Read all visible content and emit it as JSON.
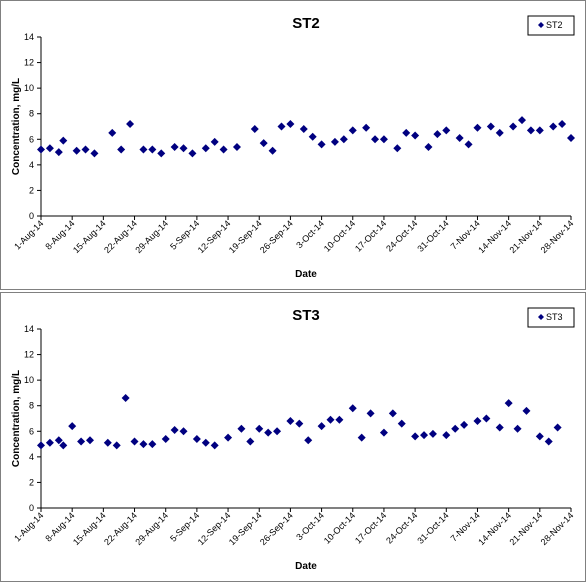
{
  "chart_data": [
    {
      "type": "scatter",
      "title": "ST2",
      "xlabel": "Date",
      "ylabel": "Concentration, mg/L",
      "ylim": [
        0,
        14
      ],
      "yticks": [
        "0",
        "2",
        "4",
        "6",
        "8",
        "10",
        "12",
        "14"
      ],
      "xlim": [
        "2014-08-01",
        "2014-11-28"
      ],
      "xticks": [
        "1-Aug-14",
        "8-Aug-14",
        "15-Aug-14",
        "22-Aug-14",
        "29-Aug-14",
        "5-Sep-14",
        "12-Sep-14",
        "19-Sep-14",
        "26-Sep-14",
        "3-Oct-14",
        "10-Oct-14",
        "17-Oct-14",
        "24-Oct-14",
        "31-Oct-14",
        "7-Nov-14",
        "14-Nov-14",
        "21-Nov-14",
        "28-Nov-14"
      ],
      "grid": false,
      "legend": "top-right",
      "marker_color": "#000080",
      "series": [
        {
          "name": "ST2",
          "points": [
            [
              "2014-08-01",
              5.2
            ],
            [
              "2014-08-03",
              5.3
            ],
            [
              "2014-08-05",
              5.0
            ],
            [
              "2014-08-06",
              5.9
            ],
            [
              "2014-08-09",
              5.1
            ],
            [
              "2014-08-11",
              5.2
            ],
            [
              "2014-08-13",
              4.9
            ],
            [
              "2014-08-17",
              6.5
            ],
            [
              "2014-08-19",
              5.2
            ],
            [
              "2014-08-21",
              7.2
            ],
            [
              "2014-08-24",
              5.2
            ],
            [
              "2014-08-26",
              5.2
            ],
            [
              "2014-08-28",
              4.9
            ],
            [
              "2014-08-31",
              5.4
            ],
            [
              "2014-09-02",
              5.3
            ],
            [
              "2014-09-04",
              4.9
            ],
            [
              "2014-09-07",
              5.3
            ],
            [
              "2014-09-09",
              5.8
            ],
            [
              "2014-09-11",
              5.2
            ],
            [
              "2014-09-14",
              5.4
            ],
            [
              "2014-09-18",
              6.8
            ],
            [
              "2014-09-20",
              5.7
            ],
            [
              "2014-09-22",
              5.1
            ],
            [
              "2014-09-24",
              7.0
            ],
            [
              "2014-09-26",
              7.2
            ],
            [
              "2014-09-29",
              6.8
            ],
            [
              "2014-10-01",
              6.2
            ],
            [
              "2014-10-03",
              5.6
            ],
            [
              "2014-10-06",
              5.8
            ],
            [
              "2014-10-08",
              6.0
            ],
            [
              "2014-10-10",
              6.7
            ],
            [
              "2014-10-13",
              6.9
            ],
            [
              "2014-10-15",
              6.0
            ],
            [
              "2014-10-17",
              6.0
            ],
            [
              "2014-10-20",
              5.3
            ],
            [
              "2014-10-22",
              6.5
            ],
            [
              "2014-10-24",
              6.3
            ],
            [
              "2014-10-27",
              5.4
            ],
            [
              "2014-10-29",
              6.4
            ],
            [
              "2014-10-31",
              6.7
            ],
            [
              "2014-11-03",
              6.1
            ],
            [
              "2014-11-05",
              5.6
            ],
            [
              "2014-11-07",
              6.9
            ],
            [
              "2014-11-10",
              7.0
            ],
            [
              "2014-11-12",
              6.5
            ],
            [
              "2014-11-15",
              7.0
            ],
            [
              "2014-11-17",
              7.5
            ],
            [
              "2014-11-19",
              6.7
            ],
            [
              "2014-11-21",
              6.7
            ],
            [
              "2014-11-24",
              7.0
            ],
            [
              "2014-11-26",
              7.2
            ],
            [
              "2014-11-28",
              6.1
            ]
          ]
        }
      ]
    },
    {
      "type": "scatter",
      "title": "ST3",
      "xlabel": "Date",
      "ylabel": "Concentration, mg/L",
      "ylim": [
        0,
        14
      ],
      "yticks": [
        "0",
        "2",
        "4",
        "6",
        "8",
        "10",
        "12",
        "14"
      ],
      "xlim": [
        "2014-08-01",
        "2014-11-28"
      ],
      "xticks": [
        "1-Aug-14",
        "8-Aug-14",
        "15-Aug-14",
        "22-Aug-14",
        "29-Aug-14",
        "5-Sep-14",
        "12-Sep-14",
        "19-Sep-14",
        "26-Sep-14",
        "3-Oct-14",
        "10-Oct-14",
        "17-Oct-14",
        "24-Oct-14",
        "31-Oct-14",
        "7-Nov-14",
        "14-Nov-14",
        "21-Nov-14",
        "28-Nov-14"
      ],
      "grid": false,
      "legend": "top-right",
      "marker_color": "#000080",
      "series": [
        {
          "name": "ST3",
          "points": [
            [
              "2014-08-01",
              4.9
            ],
            [
              "2014-08-03",
              5.1
            ],
            [
              "2014-08-05",
              5.3
            ],
            [
              "2014-08-06",
              4.9
            ],
            [
              "2014-08-08",
              6.4
            ],
            [
              "2014-08-10",
              5.2
            ],
            [
              "2014-08-12",
              5.3
            ],
            [
              "2014-08-16",
              5.1
            ],
            [
              "2014-08-18",
              4.9
            ],
            [
              "2014-08-20",
              8.6
            ],
            [
              "2014-08-22",
              5.2
            ],
            [
              "2014-08-24",
              5.0
            ],
            [
              "2014-08-26",
              5.0
            ],
            [
              "2014-08-29",
              5.4
            ],
            [
              "2014-08-31",
              6.1
            ],
            [
              "2014-09-02",
              6.0
            ],
            [
              "2014-09-05",
              5.4
            ],
            [
              "2014-09-07",
              5.1
            ],
            [
              "2014-09-09",
              4.9
            ],
            [
              "2014-09-12",
              5.5
            ],
            [
              "2014-09-15",
              6.2
            ],
            [
              "2014-09-17",
              5.2
            ],
            [
              "2014-09-19",
              6.2
            ],
            [
              "2014-09-21",
              5.9
            ],
            [
              "2014-09-23",
              6.0
            ],
            [
              "2014-09-26",
              6.8
            ],
            [
              "2014-09-28",
              6.6
            ],
            [
              "2014-09-30",
              5.3
            ],
            [
              "2014-10-03",
              6.4
            ],
            [
              "2014-10-05",
              6.9
            ],
            [
              "2014-10-07",
              6.9
            ],
            [
              "2014-10-10",
              7.8
            ],
            [
              "2014-10-12",
              5.5
            ],
            [
              "2014-10-14",
              7.4
            ],
            [
              "2014-10-17",
              5.9
            ],
            [
              "2014-10-19",
              7.4
            ],
            [
              "2014-10-21",
              6.6
            ],
            [
              "2014-10-24",
              5.6
            ],
            [
              "2014-10-26",
              5.7
            ],
            [
              "2014-10-28",
              5.8
            ],
            [
              "2014-10-31",
              5.7
            ],
            [
              "2014-11-02",
              6.2
            ],
            [
              "2014-11-04",
              6.5
            ],
            [
              "2014-11-07",
              6.8
            ],
            [
              "2014-11-09",
              7.0
            ],
            [
              "2014-11-12",
              6.3
            ],
            [
              "2014-11-14",
              8.2
            ],
            [
              "2014-11-16",
              6.2
            ],
            [
              "2014-11-18",
              7.6
            ],
            [
              "2014-11-21",
              5.6
            ],
            [
              "2014-11-23",
              5.2
            ],
            [
              "2014-11-25",
              6.3
            ]
          ]
        }
      ]
    }
  ]
}
